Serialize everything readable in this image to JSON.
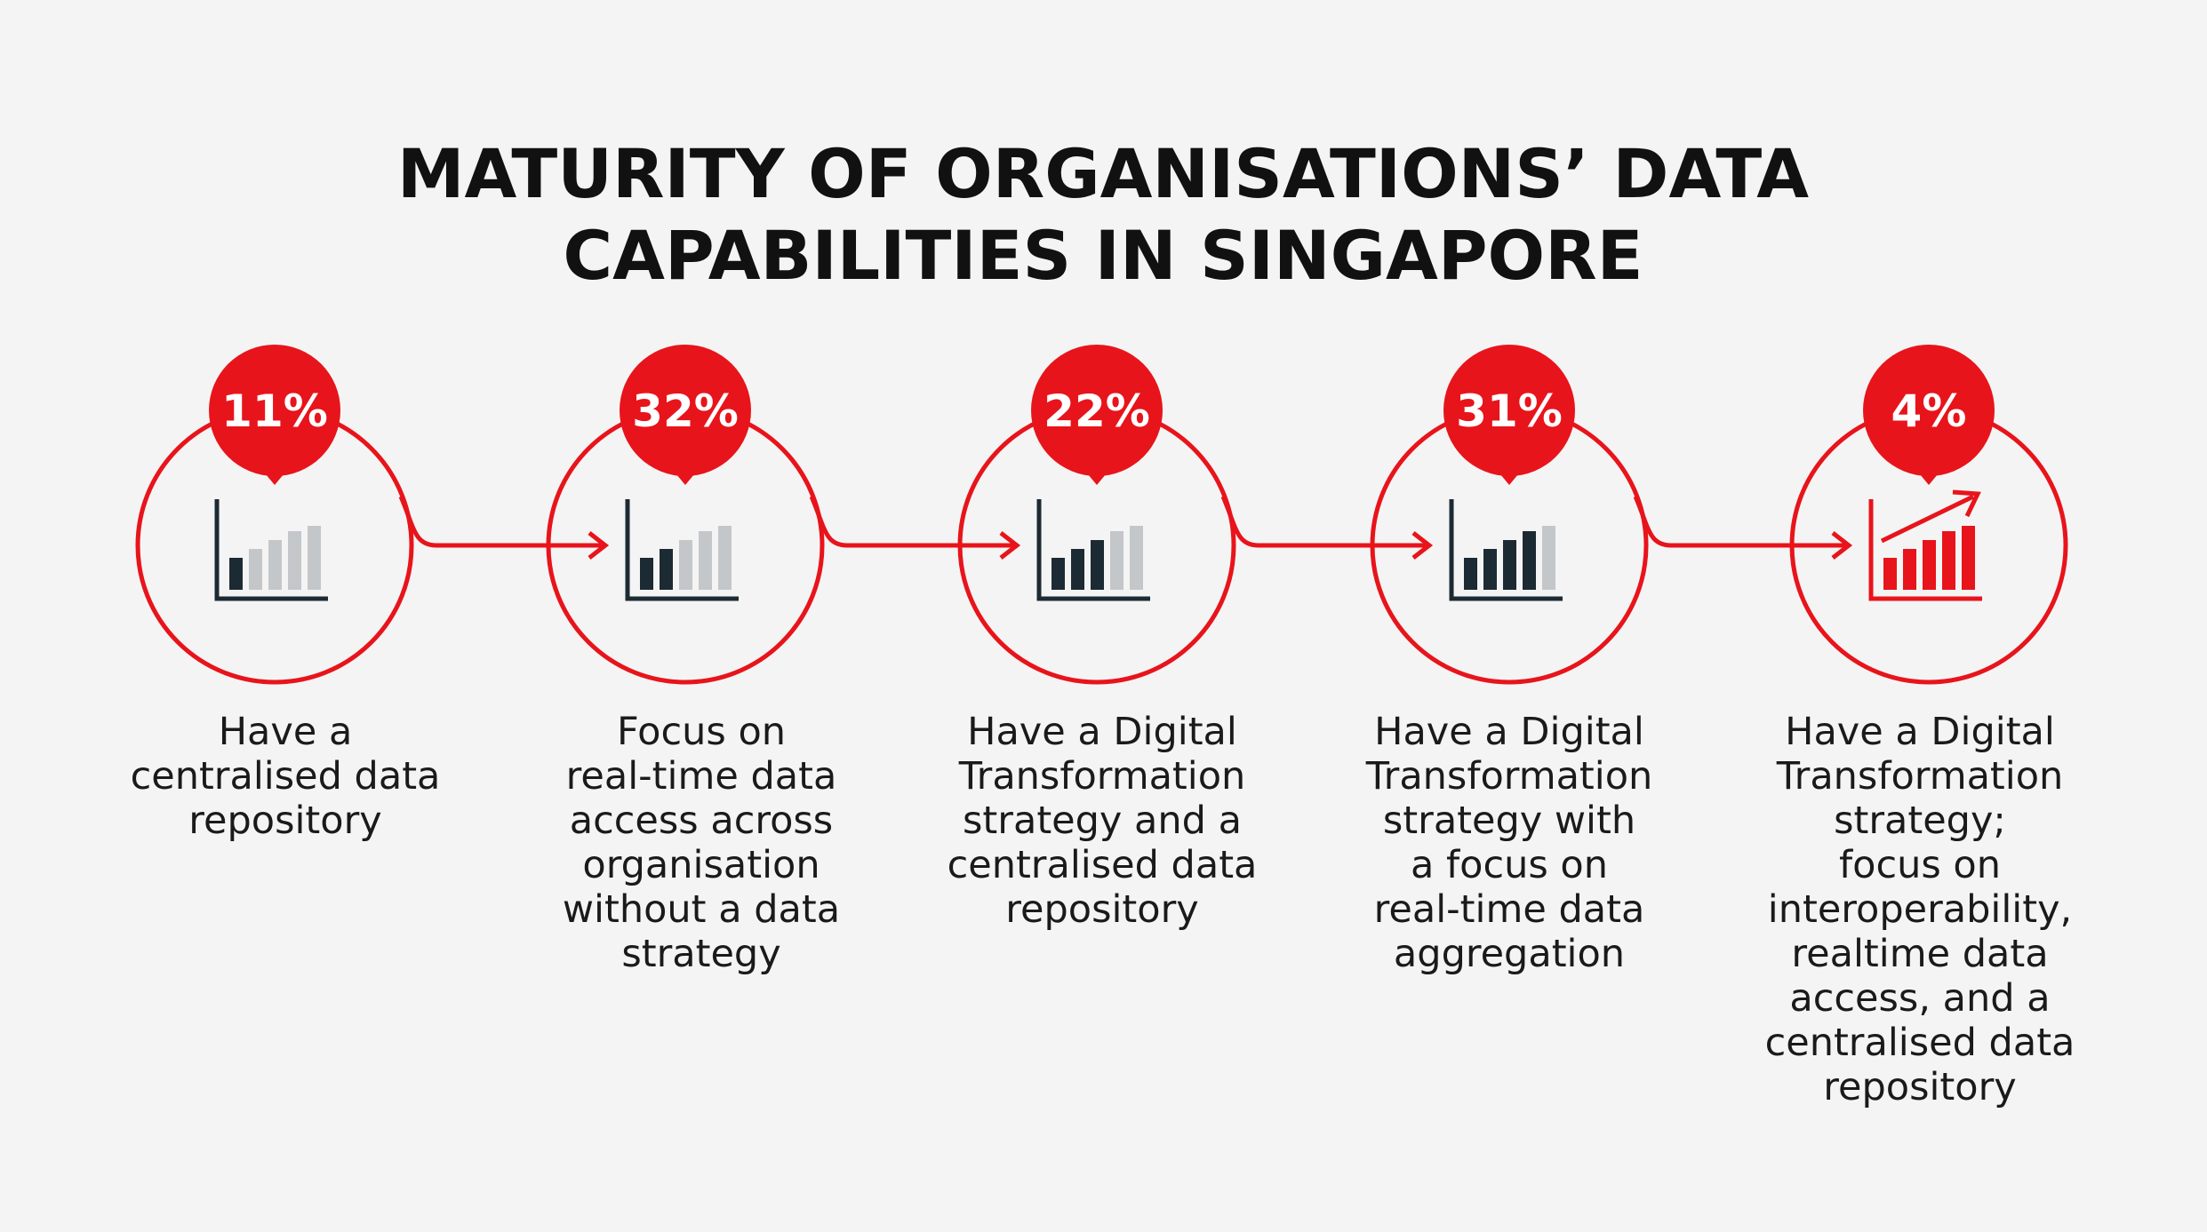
{
  "header": {
    "title": [
      "MATURITY OF ORGANISATIONS’ DATA",
      "CAPABILITIES IN SINGAPORE"
    ]
  },
  "stages": [
    {
      "value": "11%",
      "description": [
        "Have a",
        "centralised data",
        "repository"
      ]
    },
    {
      "value": "32%",
      "description": [
        "Focus on",
        "real-time data",
        "access across",
        "organisation",
        "without a data",
        "strategy"
      ]
    },
    {
      "value": "22%",
      "description": [
        "Have a Digital",
        "Transformation",
        "strategy and a",
        "centralised data",
        "repository"
      ]
    },
    {
      "value": "31%",
      "description": [
        "Have a Digital",
        "Transformation",
        "strategy with",
        "a focus on",
        "real-time data",
        "aggregation"
      ]
    },
    {
      "value": "4%",
      "description": [
        "Have a Digital",
        "Transformation",
        "strategy;",
        "focus on",
        "interoperability,",
        "realtime data",
        "access, and a",
        "centralised data",
        "repository"
      ]
    }
  ]
}
